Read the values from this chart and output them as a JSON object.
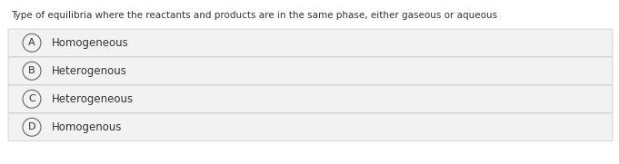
{
  "question": "Type of equilibria where the reactants and products are in the same phase, either gaseous or aqueous",
  "options": [
    {
      "label": "A",
      "text": "Homogeneous"
    },
    {
      "label": "B",
      "text": "Heterogenous"
    },
    {
      "label": "C",
      "text": "Heterogeneous"
    },
    {
      "label": "D",
      "text": "Homogenous"
    }
  ],
  "fig_bg_color": "#ffffff",
  "option_bg_color": "#f2f2f2",
  "option_border_color": "#d0d0d0",
  "text_color": "#333333",
  "circle_edge_color": "#666666",
  "question_fontsize": 7.5,
  "option_fontsize": 8.5,
  "label_fontsize": 8.0,
  "fig_width": 6.81,
  "fig_height": 1.81,
  "dpi": 100
}
